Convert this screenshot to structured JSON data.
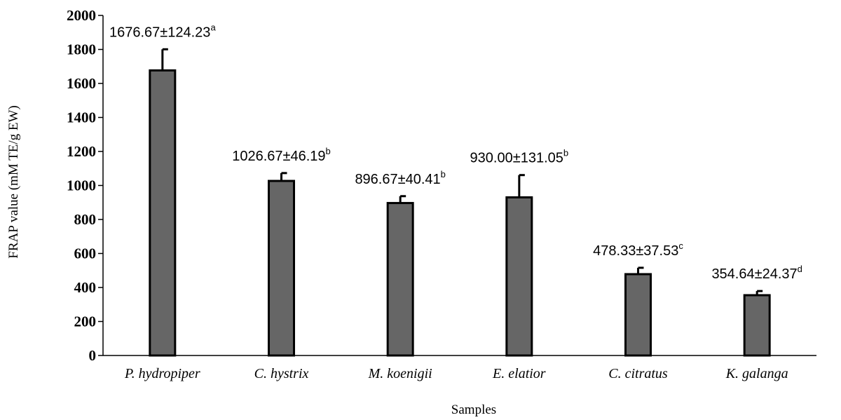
{
  "chart_data": {
    "type": "bar",
    "title": "",
    "xlabel": "Samples",
    "ylabel": "FRAP value (mM TE/g EW)",
    "ylim": [
      0,
      2000
    ],
    "yticks": [
      0,
      200,
      400,
      600,
      800,
      1000,
      1200,
      1400,
      1600,
      1800,
      2000
    ],
    "grid": false,
    "legend": "none",
    "categories": [
      "P. hydropiper",
      "C. hystrix",
      "M. koenigii",
      "E. elatior",
      "C. citratus",
      "K. galanga"
    ],
    "series": [
      {
        "values": [
          1676.67,
          1026.67,
          896.67,
          930.0,
          478.33,
          354.64
        ],
        "errors": [
          124.23,
          46.19,
          40.41,
          131.05,
          37.53,
          24.37
        ],
        "labels": [
          "1676.67±124.23",
          "1026.67±46.19",
          "896.67±40.41",
          "930.00±131.05",
          "478.33±37.53",
          "354.64±24.37"
        ],
        "significance": [
          "a",
          "b",
          "b",
          "b",
          "c",
          "d"
        ]
      }
    ],
    "colors": {
      "bar_fill": "#666666",
      "bar_stroke": "#000000",
      "axis": "#000000"
    }
  }
}
